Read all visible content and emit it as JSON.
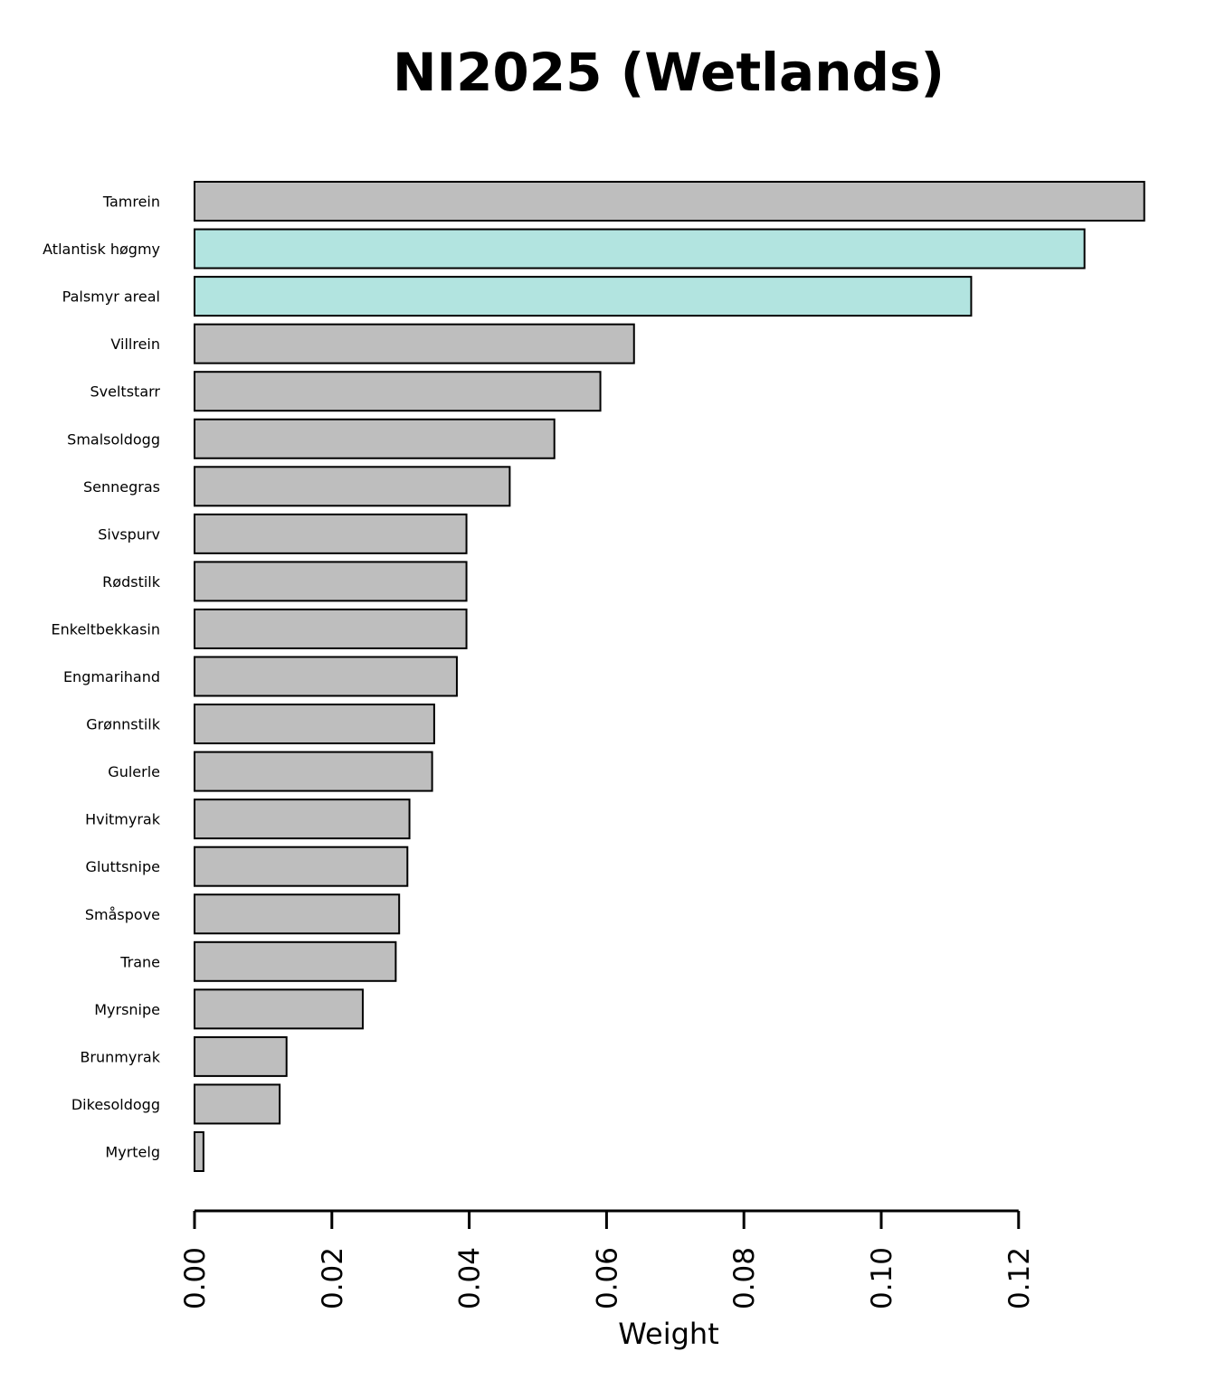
{
  "chart_data": {
    "type": "bar",
    "orientation": "horizontal",
    "title": "NI2025 (Wetlands)",
    "xlabel": "Weight",
    "ylabel": "",
    "xlim": [
      0,
      0.1385
    ],
    "xticks": [
      "0.00",
      "0.02",
      "0.04",
      "0.06",
      "0.08",
      "0.10",
      "0.12"
    ],
    "xtick_values": [
      0,
      0.02,
      0.04,
      0.06,
      0.08,
      0.1,
      0.12
    ],
    "grid": false,
    "legend": "none",
    "categories": [
      "Tamrein",
      "Atlantisk høgmy",
      "Palsmyr areal",
      "Villrein",
      "Sveltstarr",
      "Smalsoldogg",
      "Sennegras",
      "Sivspurv",
      "Rødstilk",
      "Enkeltbekkasin",
      "Engmarihand",
      "Grønnstilk",
      "Gulerle",
      "Hvitmyrak",
      "Gluttsnipe",
      "Småspove",
      "Trane",
      "Myrsnipe",
      "Brunmyrak",
      "Dikesoldogg",
      "Myrtelg"
    ],
    "values": [
      0.1383,
      0.1296,
      0.1131,
      0.064,
      0.0591,
      0.0524,
      0.0459,
      0.0396,
      0.0396,
      0.0396,
      0.0382,
      0.0349,
      0.0346,
      0.0313,
      0.031,
      0.0298,
      0.0293,
      0.0245,
      0.0134,
      0.0124,
      0.0013
    ],
    "bar_colors": [
      "#bebebe",
      "#b2e4e0",
      "#b2e4e0",
      "#bebebe",
      "#bebebe",
      "#bebebe",
      "#bebebe",
      "#bebebe",
      "#bebebe",
      "#bebebe",
      "#bebebe",
      "#bebebe",
      "#bebebe",
      "#bebebe",
      "#bebebe",
      "#bebebe",
      "#bebebe",
      "#bebebe",
      "#bebebe",
      "#bebebe",
      "#bebebe"
    ],
    "colors": {
      "default_bar": "#bebebe",
      "highlight_bar": "#b2e4e0",
      "outline": "#000000"
    }
  }
}
